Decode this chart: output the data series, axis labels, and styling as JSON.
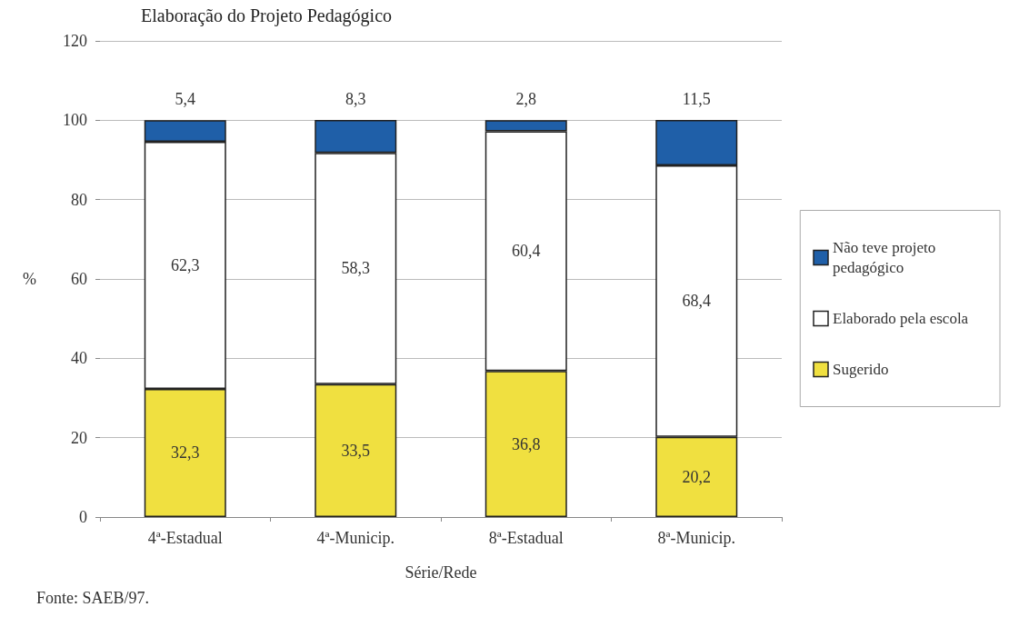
{
  "chart_data": {
    "type": "bar",
    "stacked": true,
    "title": "Elaboração do Projeto Pedagógico",
    "xlabel": "Série/Rede",
    "ylabel": "%",
    "categories": [
      "4ª-Estadual",
      "4ª-Municip.",
      "8ª-Estadual",
      "8ª-Municip."
    ],
    "series": [
      {
        "name": "Sugerido",
        "color": "#f0e040",
        "values": [
          32.3,
          33.5,
          36.8,
          20.2
        ],
        "value_labels": [
          "32,3",
          "33,5",
          "36,8",
          "20,2"
        ]
      },
      {
        "name": "Elaborado pela escola",
        "color": "#ffffff",
        "values": [
          62.3,
          58.3,
          60.4,
          68.4
        ],
        "value_labels": [
          "62,3",
          "58,3",
          "60,4",
          "68,4"
        ]
      },
      {
        "name": "Não teve projeto pedagógico",
        "color": "#1f5fa8",
        "values": [
          5.4,
          8.3,
          2.8,
          11.5
        ],
        "value_labels": [
          "5,4",
          "8,3",
          "2,8",
          "11,5"
        ]
      }
    ],
    "ylim": [
      0,
      120
    ],
    "yticks": [
      0,
      20,
      40,
      60,
      80,
      100,
      120
    ],
    "grid": "y",
    "legend": "right",
    "annotations": [
      "Fonte: SAEB/97."
    ]
  }
}
